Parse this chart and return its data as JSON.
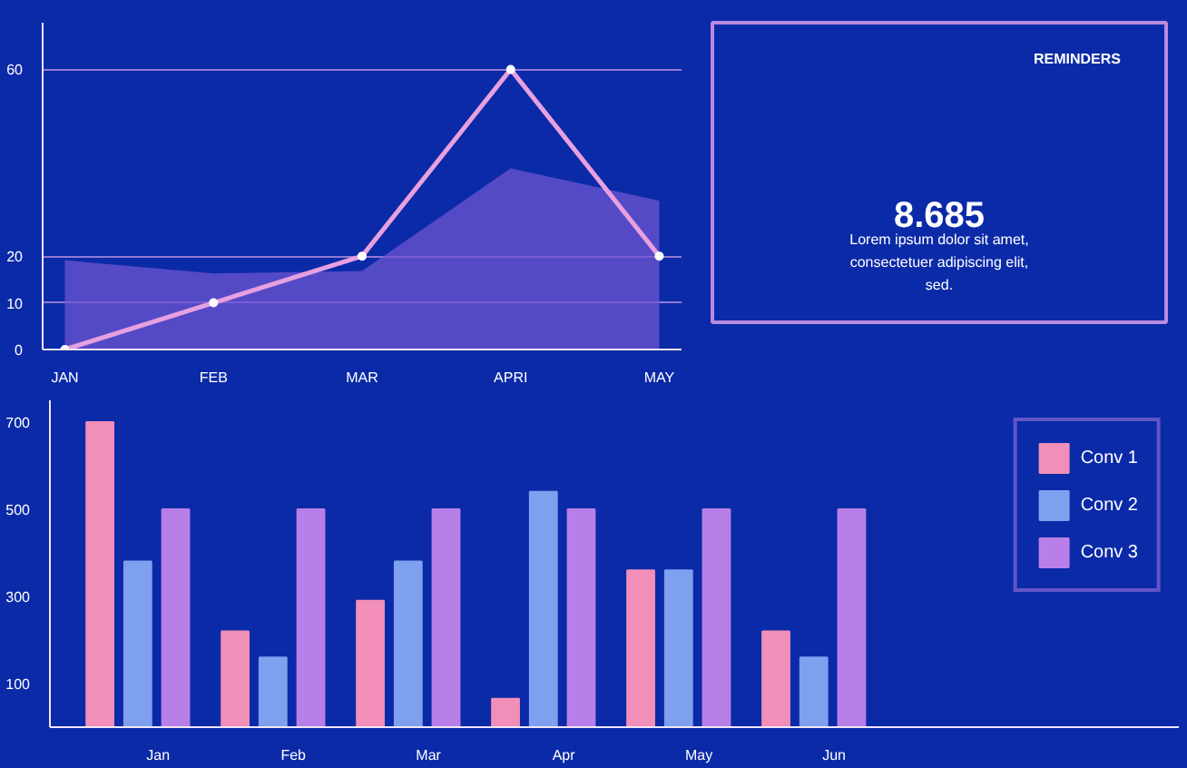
{
  "chart_data": [
    {
      "type": "line",
      "categories": [
        "JAN",
        "FEB",
        "MAR",
        "APRI",
        "MAY"
      ],
      "ylim": [
        0,
        70
      ],
      "yticks": [
        0,
        10,
        20,
        60
      ],
      "grid": "y",
      "series": [
        {
          "type": "area",
          "color": "#6f55d0",
          "values": [
            19.1,
            16.3,
            16.8,
            38.8,
            31.9
          ]
        },
        {
          "type": "line",
          "color": "#e7a0e0",
          "marker": "circle",
          "values": [
            0,
            10,
            20,
            60,
            20
          ]
        }
      ]
    },
    {
      "type": "other",
      "title": "REMINDERS",
      "annotations": [
        "8.685",
        "Lorem ipsum dolor sit amet, consectetuer adipiscing elit, sed."
      ]
    },
    {
      "type": "bar",
      "categories": [
        "Jan",
        "Feb",
        "Mar",
        "Apr",
        "May",
        "Jun"
      ],
      "ylim": [
        0,
        750
      ],
      "yticks": [
        100,
        300,
        500,
        700
      ],
      "legend": "right",
      "series": [
        {
          "name": "Conv 1",
          "color": "#f28fb8",
          "values": [
            700,
            220,
            290,
            65,
            360,
            220
          ]
        },
        {
          "name": "Conv 2",
          "color": "#7ea0ee",
          "values": [
            380,
            160,
            380,
            540,
            360,
            160
          ]
        },
        {
          "name": "Conv 3",
          "color": "#b97fe8",
          "values": [
            500,
            500,
            500,
            500,
            500,
            500
          ]
        }
      ]
    }
  ]
}
